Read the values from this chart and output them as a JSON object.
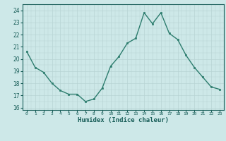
{
  "x": [
    0,
    1,
    2,
    3,
    4,
    5,
    6,
    7,
    8,
    9,
    10,
    11,
    12,
    13,
    14,
    15,
    16,
    17,
    18,
    19,
    20,
    21,
    22,
    23
  ],
  "y": [
    20.6,
    19.3,
    18.9,
    18.0,
    17.4,
    17.1,
    17.1,
    16.5,
    16.7,
    17.6,
    19.4,
    20.2,
    21.3,
    21.7,
    23.8,
    22.9,
    23.8,
    22.1,
    21.6,
    20.3,
    19.3,
    18.5,
    17.7,
    17.5
  ],
  "line_color": "#2d7d6e",
  "marker_color": "#2d7d6e",
  "bg_color": "#cde8e8",
  "grid_color_major": "#b8d4d4",
  "grid_color_minor": "#ccdddd",
  "text_color": "#1a5f5a",
  "xlabel": "Humidex (Indice chaleur)",
  "ylim": [
    15.8,
    24.5
  ],
  "yticks": [
    16,
    17,
    18,
    19,
    20,
    21,
    22,
    23,
    24
  ],
  "xlim": [
    -0.5,
    23.5
  ]
}
